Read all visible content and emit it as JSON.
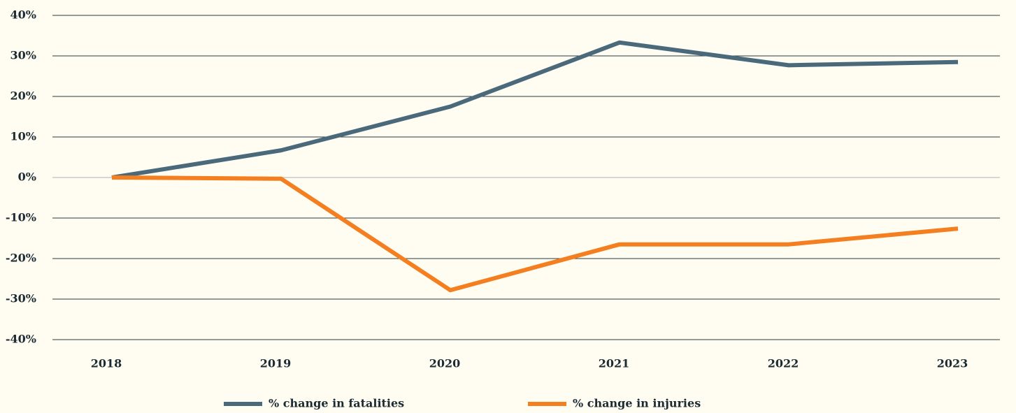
{
  "chart_data": {
    "type": "line",
    "categories": [
      "2018",
      "2019",
      "2020",
      "2021",
      "2022",
      "2023"
    ],
    "series": [
      {
        "name": "% change in fatalities",
        "color": "#4a6a7b",
        "values": [
          0,
          6.7,
          17.5,
          33.3,
          27.7,
          28.5
        ]
      },
      {
        "name": "% change in injuries",
        "color": "#f47f20",
        "values": [
          0,
          -0.3,
          -27.8,
          -16.5,
          -16.5,
          -12.6
        ]
      }
    ],
    "ylim": [
      -40,
      40
    ],
    "yticks": [
      {
        "value": -40,
        "label": "-40%"
      },
      {
        "value": -30,
        "label": "-30%"
      },
      {
        "value": -20,
        "label": "-20%"
      },
      {
        "value": -10,
        "label": "-10%"
      },
      {
        "value": 0,
        "label": "0%"
      },
      {
        "value": 10,
        "label": "10%"
      },
      {
        "value": 20,
        "label": "20%"
      },
      {
        "value": 30,
        "label": "30%"
      },
      {
        "value": 40,
        "label": "40%"
      }
    ],
    "grid": true,
    "legend": "bottom"
  }
}
